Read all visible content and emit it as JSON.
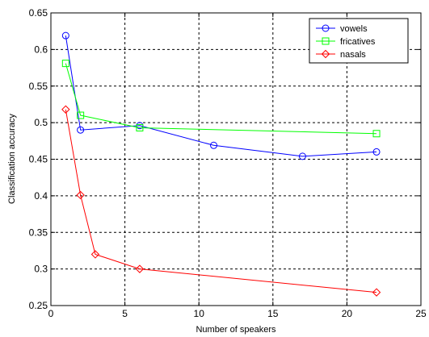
{
  "chart_data": {
    "type": "line",
    "title": "",
    "xlabel": "Number of speakers",
    "ylabel": "Classification accuracy",
    "xlim": [
      0,
      25
    ],
    "ylim": [
      0.25,
      0.65
    ],
    "xticks": [
      0,
      5,
      10,
      15,
      20,
      25
    ],
    "yticks": [
      0.25,
      0.3,
      0.35,
      0.4,
      0.45,
      0.5,
      0.55,
      0.6,
      0.65
    ],
    "xtick_labels": [
      "0",
      "5",
      "10",
      "15",
      "20",
      "25"
    ],
    "ytick_labels": [
      "0.25",
      "0.3",
      "0.35",
      "0.4",
      "0.45",
      "0.5",
      "0.55",
      "0.6",
      "0.65"
    ],
    "grid": true,
    "legend_position": "top-right",
    "series": [
      {
        "name": "vowels",
        "color": "#0000ff",
        "marker": "circle",
        "x": [
          1,
          2,
          6,
          11,
          17,
          22
        ],
        "y": [
          0.619,
          0.49,
          0.496,
          0.469,
          0.454,
          0.46
        ]
      },
      {
        "name": "fricatives",
        "color": "#00ff00",
        "marker": "square",
        "x": [
          1,
          2,
          6,
          22
        ],
        "y": [
          0.581,
          0.51,
          0.493,
          0.485
        ]
      },
      {
        "name": "nasals",
        "color": "#ff0000",
        "marker": "diamond",
        "x": [
          1,
          2,
          3,
          6,
          22
        ],
        "y": [
          0.518,
          0.401,
          0.32,
          0.3,
          0.268
        ]
      }
    ]
  }
}
